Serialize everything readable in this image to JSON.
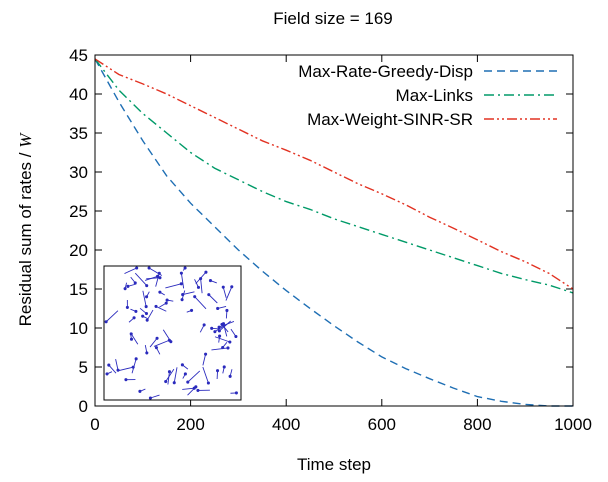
{
  "chart_data": {
    "type": "line",
    "title": "Field size = 169",
    "xlabel": "Time step",
    "ylabel": "Residual sum of rates / W",
    "ylabel_text": "Residual sum of rates /",
    "ylabel_symbol": "W",
    "xlim": [
      0,
      1000
    ],
    "ylim": [
      0,
      45
    ],
    "xticks": [
      0,
      200,
      400,
      600,
      800,
      1000
    ],
    "yticks": [
      0,
      5,
      10,
      15,
      20,
      25,
      30,
      35,
      40,
      45
    ],
    "grid": false,
    "legend_position": "top-right",
    "series": [
      {
        "name": "Max-Rate-Greedy-Disp",
        "color": "#1f6fb4",
        "dash": "8,5",
        "x": [
          0,
          50,
          100,
          150,
          200,
          250,
          300,
          350,
          400,
          450,
          500,
          550,
          600,
          650,
          700,
          750,
          800,
          850,
          900,
          950,
          1000
        ],
        "y": [
          44.5,
          39.0,
          34.0,
          29.5,
          26.0,
          23.0,
          20.0,
          17.3,
          14.8,
          12.5,
          10.3,
          8.2,
          6.3,
          4.8,
          3.5,
          2.3,
          1.2,
          0.6,
          0.2,
          0.0,
          0.0
        ]
      },
      {
        "name": "Max-Links",
        "color": "#009a68",
        "dash": "10,4,2,4",
        "x": [
          0,
          50,
          100,
          150,
          200,
          250,
          300,
          350,
          400,
          450,
          500,
          550,
          600,
          650,
          700,
          750,
          800,
          850,
          900,
          950,
          1000
        ],
        "y": [
          44.5,
          40.5,
          37.5,
          35.0,
          32.5,
          30.5,
          29.0,
          27.5,
          26.2,
          25.2,
          24.0,
          23.0,
          22.0,
          21.0,
          20.0,
          19.0,
          18.0,
          17.0,
          16.2,
          15.5,
          14.5
        ]
      },
      {
        "name": "Max-Weight-SINR-SR",
        "color": "#e23222",
        "dash": "10,3,2,3,2,3",
        "x": [
          0,
          50,
          100,
          150,
          200,
          250,
          300,
          350,
          400,
          450,
          500,
          550,
          600,
          650,
          700,
          750,
          800,
          850,
          900,
          950,
          1000
        ],
        "y": [
          44.5,
          42.5,
          41.3,
          40.0,
          38.5,
          37.0,
          35.5,
          34.0,
          32.8,
          31.5,
          30.0,
          28.5,
          27.2,
          25.8,
          24.2,
          22.8,
          21.3,
          19.8,
          18.5,
          17.0,
          15.0
        ]
      }
    ]
  }
}
